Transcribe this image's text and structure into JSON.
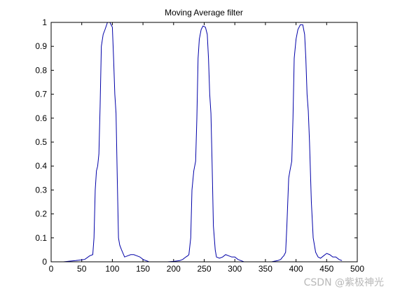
{
  "figure": {
    "background": "#ffffff",
    "axes_color": "#000000",
    "line_color": "#0000a8"
  },
  "watermark": "CSDN @紫极神光",
  "chart_data": {
    "type": "line",
    "title": "Moving Average filter",
    "xlabel": "",
    "ylabel": "",
    "xlim": [
      0,
      500
    ],
    "ylim": [
      0,
      1
    ],
    "x_ticks": [
      0,
      50,
      100,
      150,
      200,
      250,
      300,
      350,
      400,
      450,
      500
    ],
    "y_ticks": [
      0,
      0.1,
      0.2,
      0.3,
      0.4,
      0.5,
      0.6,
      0.7,
      0.8,
      0.9,
      1
    ],
    "x_tick_labels": [
      "0",
      "50",
      "100",
      "150",
      "200",
      "250",
      "300",
      "350",
      "400",
      "450",
      "500"
    ],
    "y_tick_labels": [
      "0",
      "0.1",
      "0.2",
      "0.3",
      "0.4",
      "0.5",
      "0.6",
      "0.7",
      "0.8",
      "0.9",
      "1"
    ],
    "grid": false,
    "series": [
      {
        "color": "#0000a8",
        "x": [
          0,
          20,
          40,
          55,
          63,
          68,
          70,
          72,
          74,
          76,
          78,
          80,
          82,
          85,
          88,
          92,
          96,
          100,
          102,
          104,
          106,
          108,
          110,
          112,
          115,
          120,
          125,
          130,
          135,
          140,
          145,
          150,
          155,
          160,
          170,
          180,
          190,
          200,
          210,
          215,
          220,
          223,
          225,
          228,
          230,
          233,
          236,
          238,
          240,
          242,
          245,
          248,
          252,
          255,
          257,
          259,
          261,
          263,
          265,
          268,
          270,
          275,
          280,
          285,
          290,
          295,
          300,
          305,
          310,
          315,
          320,
          330,
          340,
          350,
          360,
          370,
          375,
          378,
          380,
          383,
          385,
          388,
          390,
          393,
          395,
          397,
          400,
          403,
          407,
          411,
          414,
          416,
          418,
          420,
          422,
          425,
          428,
          432,
          436,
          440,
          445,
          450,
          455,
          460,
          465,
          470,
          475
        ],
        "y": [
          0.0,
          0.0,
          0.005,
          0.01,
          0.025,
          0.03,
          0.1,
          0.3,
          0.38,
          0.4,
          0.45,
          0.65,
          0.9,
          0.95,
          0.97,
          1.0,
          1.0,
          0.98,
          0.85,
          0.7,
          0.62,
          0.35,
          0.1,
          0.07,
          0.05,
          0.02,
          0.025,
          0.03,
          0.03,
          0.025,
          0.02,
          0.01,
          0.005,
          0.0,
          0.0,
          0.0,
          0.0,
          0.002,
          0.005,
          0.01,
          0.02,
          0.025,
          0.03,
          0.1,
          0.3,
          0.38,
          0.42,
          0.6,
          0.85,
          0.93,
          0.97,
          0.985,
          0.98,
          0.95,
          0.85,
          0.7,
          0.62,
          0.4,
          0.15,
          0.05,
          0.02,
          0.015,
          0.02,
          0.03,
          0.025,
          0.02,
          0.02,
          0.01,
          0.005,
          0.0,
          0.0,
          0.0,
          0.0,
          0.0,
          0.0,
          0.005,
          0.01,
          0.02,
          0.025,
          0.04,
          0.15,
          0.35,
          0.38,
          0.42,
          0.6,
          0.85,
          0.93,
          0.97,
          0.99,
          0.99,
          0.95,
          0.85,
          0.7,
          0.63,
          0.5,
          0.25,
          0.1,
          0.04,
          0.02,
          0.015,
          0.025,
          0.035,
          0.03,
          0.02,
          0.02,
          0.01,
          0.005
        ]
      }
    ]
  }
}
